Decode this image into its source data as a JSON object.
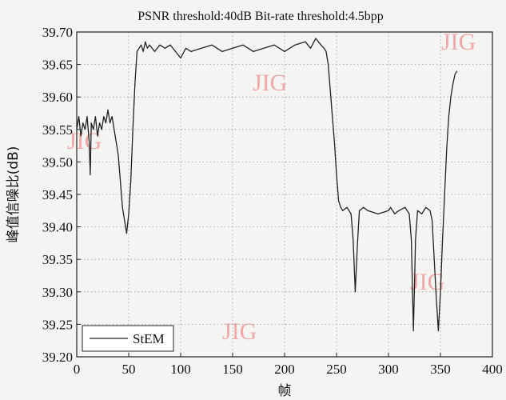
{
  "chart_data": {
    "type": "line",
    "title": "PSNR threshold:40dB Bit-rate threshold:4.5bpp",
    "xlabel": "帧",
    "ylabel": "峰值信噪比(dB)",
    "xlim": [
      0,
      400
    ],
    "ylim": [
      39.2,
      39.7
    ],
    "grid": true,
    "legend_position": "bottom-left",
    "x_ticks": [
      "0",
      "50",
      "100",
      "150",
      "200",
      "250",
      "300",
      "350",
      "400"
    ],
    "y_ticks": [
      "39.20",
      "39.25",
      "39.30",
      "39.35",
      "39.40",
      "39.45",
      "39.50",
      "39.55",
      "39.60",
      "39.65",
      "39.70"
    ],
    "series": [
      {
        "name": "StEM",
        "color": "#222222",
        "x": [
          0,
          2,
          4,
          6,
          8,
          10,
          12,
          13,
          14,
          16,
          18,
          20,
          22,
          24,
          26,
          28,
          30,
          32,
          34,
          36,
          38,
          40,
          42,
          44,
          46,
          48,
          50,
          52,
          54,
          56,
          58,
          60,
          62,
          64,
          66,
          68,
          70,
          75,
          80,
          85,
          90,
          95,
          100,
          105,
          110,
          120,
          130,
          140,
          150,
          160,
          170,
          180,
          190,
          200,
          205,
          210,
          220,
          225,
          230,
          235,
          238,
          240,
          242,
          244,
          246,
          248,
          250,
          252,
          254,
          256,
          260,
          264,
          266,
          268,
          270,
          272,
          276,
          280,
          290,
          300,
          302,
          306,
          310,
          316,
          320,
          322,
          324,
          326,
          328,
          332,
          336,
          340,
          342,
          344,
          346,
          348,
          350,
          352,
          354,
          356,
          358,
          360,
          362,
          364,
          366
        ],
        "values": [
          39.55,
          39.57,
          39.54,
          39.56,
          39.55,
          39.57,
          39.53,
          39.48,
          39.56,
          39.55,
          39.57,
          39.54,
          39.56,
          39.55,
          39.57,
          39.56,
          39.58,
          39.56,
          39.57,
          39.55,
          39.53,
          39.51,
          39.47,
          39.43,
          39.41,
          39.39,
          39.42,
          39.47,
          39.55,
          39.62,
          39.67,
          39.675,
          39.68,
          39.67,
          39.685,
          39.675,
          39.68,
          39.67,
          39.68,
          39.675,
          39.68,
          39.67,
          39.66,
          39.675,
          39.67,
          39.675,
          39.68,
          39.67,
          39.675,
          39.68,
          39.67,
          39.675,
          39.68,
          39.67,
          39.675,
          39.68,
          39.685,
          39.675,
          39.69,
          39.68,
          39.675,
          39.67,
          39.65,
          39.61,
          39.57,
          39.53,
          39.48,
          39.44,
          39.43,
          39.425,
          39.43,
          39.42,
          39.38,
          39.3,
          39.37,
          39.425,
          39.43,
          39.425,
          39.42,
          39.425,
          39.43,
          39.42,
          39.425,
          39.43,
          39.42,
          39.38,
          39.24,
          39.38,
          39.425,
          39.42,
          39.43,
          39.425,
          39.41,
          39.35,
          39.29,
          39.24,
          39.3,
          39.38,
          39.45,
          39.52,
          39.57,
          39.6,
          39.62,
          39.635,
          39.64
        ]
      }
    ]
  },
  "watermark": "JIG"
}
